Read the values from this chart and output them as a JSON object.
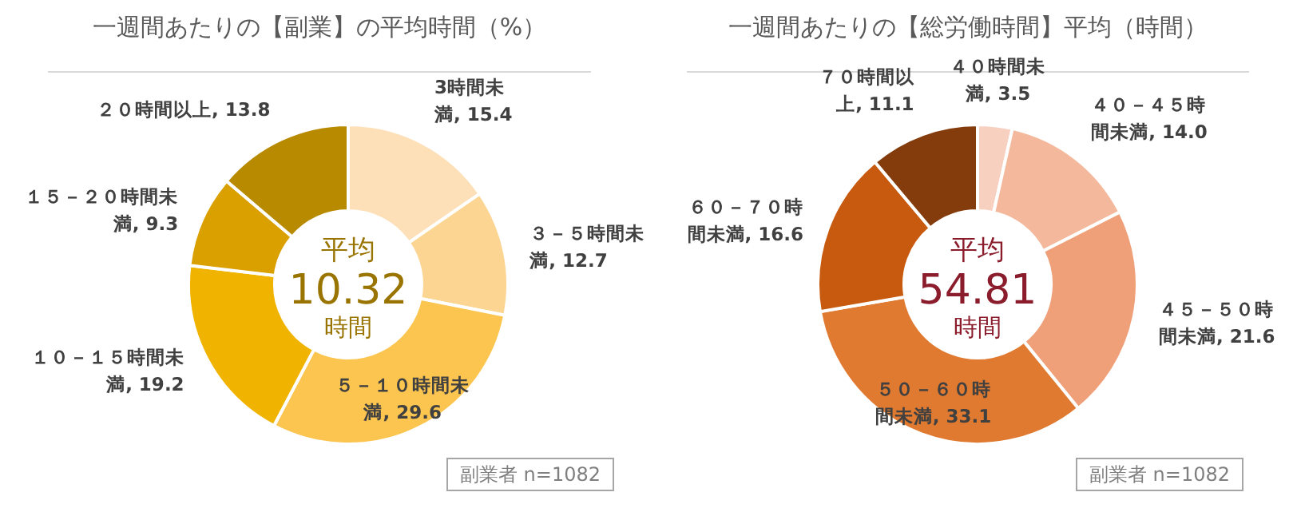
{
  "chart_data": [
    {
      "type": "donut",
      "title": "一週間あたりの【副業】の平均時間（%）",
      "categories": [
        "3時間未満",
        "３－５時間未満",
        "５－１０時間未満",
        "１０－１５時間未満",
        "１５－２０時間未満",
        "２０時間以上"
      ],
      "values": [
        15.4,
        12.7,
        29.6,
        19.2,
        9.3,
        13.8
      ],
      "colors": [
        "#fde0b8",
        "#fdd592",
        "#fcc550",
        "#f0b400",
        "#d9a000",
        "#b88a00"
      ],
      "value_labels": [
        "15.4",
        "12.7",
        "29.6",
        "19.2",
        "9.3",
        "13.8"
      ],
      "annotations": [
        "平均",
        "10.32",
        "時間",
        "副業者 n=1082"
      ]
    },
    {
      "type": "donut",
      "title": "一週間あたりの【総労働時間】平均（時間）",
      "categories": [
        "４０時間未満",
        "４０－４５時間未満",
        "４５－５０時間未満",
        "５０－６０時間未満",
        "６０－７０時間未満",
        "７０時間以上"
      ],
      "values": [
        3.5,
        14.0,
        21.6,
        33.1,
        16.6,
        11.1
      ],
      "colors": [
        "#f8d0c0",
        "#f4b89c",
        "#f0a078",
        "#e07a30",
        "#c85a10",
        "#843c0c"
      ],
      "value_labels": [
        "3.5",
        "14.0",
        "21.6",
        "33.1",
        "16.6",
        "11.1"
      ],
      "annotations": [
        "平均",
        "54.81",
        "時間",
        "副業者 n=1082"
      ]
    }
  ]
}
